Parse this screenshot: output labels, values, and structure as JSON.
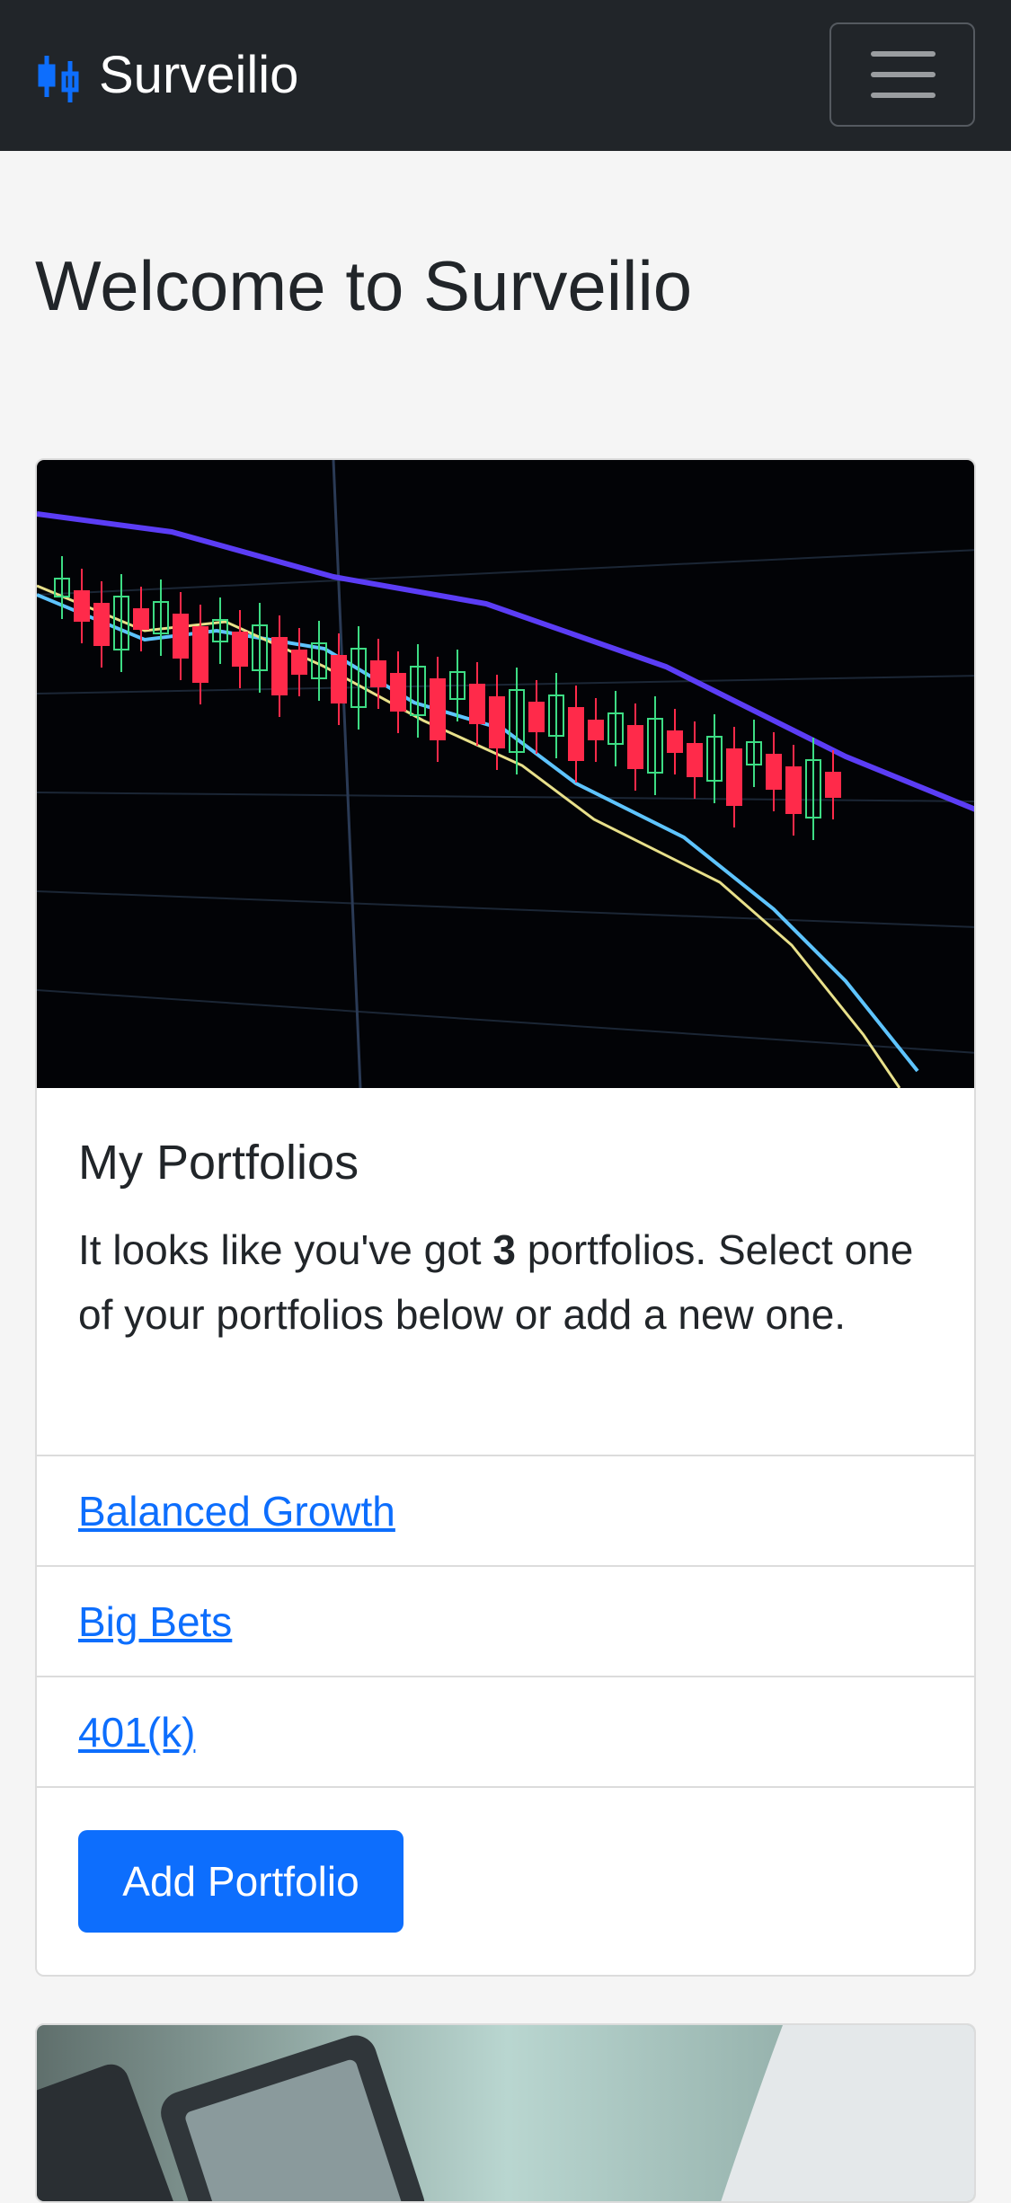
{
  "nav": {
    "brand": "Surveilio"
  },
  "heading": "Welcome to Surveilio",
  "card": {
    "title": "My Portfolios",
    "text": {
      "before": "It looks like you've got ",
      "count": "3",
      "after": " portfolios. Select one of your portfolios below or add a new one."
    },
    "portfolios": [
      "Balanced Growth",
      "Big Bets",
      "401(k)"
    ],
    "button": "Add Portfolio"
  }
}
